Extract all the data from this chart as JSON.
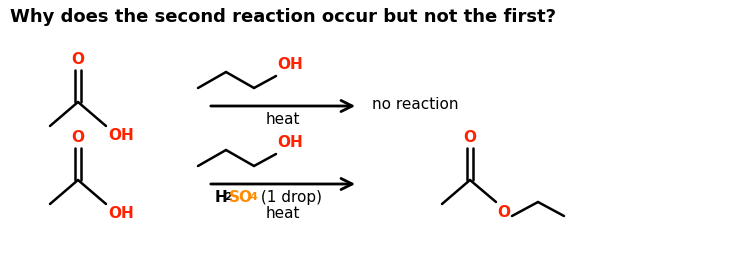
{
  "title": "Why does the second reaction occur but not the first?",
  "title_fontsize": 13.0,
  "title_fontweight": "bold",
  "bg_color": "#ffffff",
  "black": "#000000",
  "red": "#ff2200",
  "orange": "#ff8c00",
  "no_reaction": "no reaction",
  "heat": "heat",
  "h2so4_H": "H",
  "h2so4_2": "2",
  "h2so4_SO": "SO",
  "h2so4_4": "4",
  "h2so4_drop": " (1 drop)",
  "figw": 7.34,
  "figh": 2.8,
  "dpi": 100
}
